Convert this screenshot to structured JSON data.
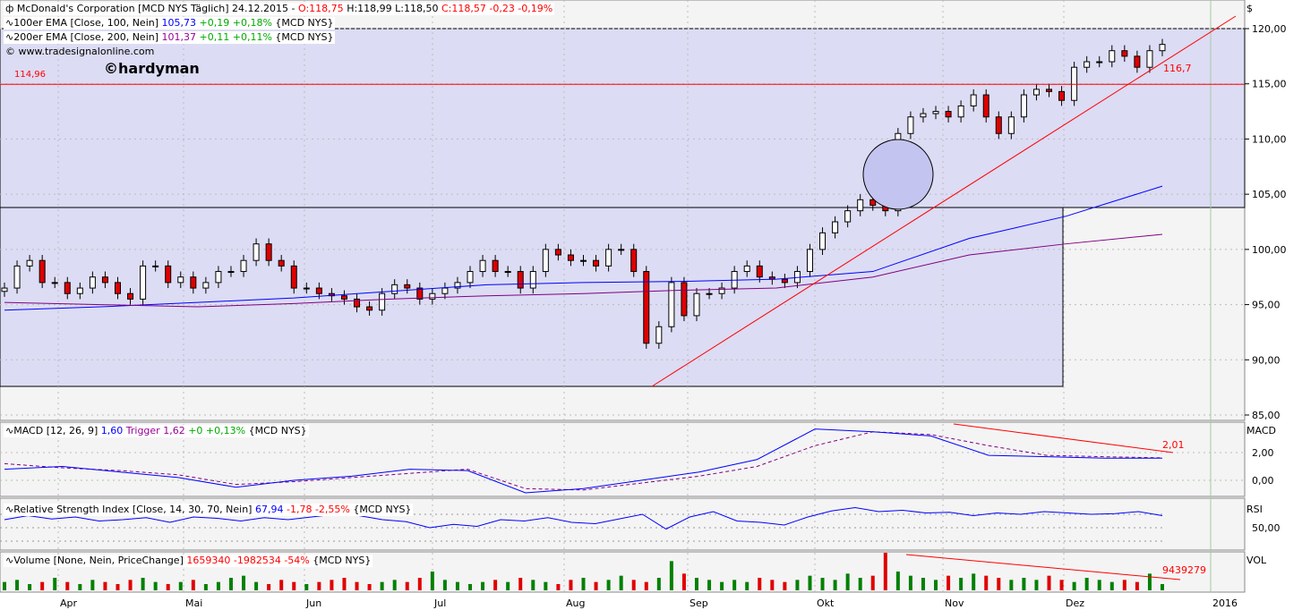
{
  "header": {
    "symbol_icon": "candlestick-icon",
    "title": "McDonald's Corporation [MCD NYS  Täglich] 24.12.2015 -",
    "open": "O:118,75",
    "high": "H:118,99",
    "low": "L:118,50",
    "close": "C:118,57 -0,23 -0,19%"
  },
  "ema100": {
    "label": "100er EMA [Close, 100, Nein]",
    "value": "105,73",
    "change": "+0,19 +0,18%",
    "src": "{MCD NYS}"
  },
  "ema200": {
    "label": "200er EMA [Close, 200, Nein]",
    "value": "101,37",
    "change": "+0,11 +0,11%",
    "src": "{MCD NYS}"
  },
  "copyright": "© www.tradesignalonline.com",
  "watermark": "©hardyman",
  "level_label": "114,96",
  "trend_label": "116,7",
  "macd": {
    "label": "MACD [12, 26, 9]",
    "value": "1,60",
    "trigger": "Trigger 1,62",
    "change": "+0 +0,13%",
    "src": "{MCD NYS}",
    "axis_title": "MACD",
    "trend_label": "2,01"
  },
  "rsi": {
    "label": "Relative Strength Index [Close, 14, 30, 70, Nein]",
    "value": "67,94",
    "change": "-1,78 -2,55%",
    "src": "{MCD NYS}",
    "axis_title": "RSI"
  },
  "volume": {
    "label": "Volume [None, Nein, PriceChange]",
    "value": "1659340",
    "change": "-1982534 -54%",
    "src": "{MCD NYS}",
    "axis_title": "VOL",
    "trend_label": "9439279"
  },
  "currency": "$",
  "chart_data": {
    "type": "candlestick",
    "x_ticks": [
      "Apr",
      "Mai",
      "Jun",
      "Jul",
      "Aug",
      "Sep",
      "Okt",
      "Nov",
      "Dez",
      "2016"
    ],
    "y_ticks": [
      "120,00",
      "115,00",
      "110,00",
      "105,00",
      "100,00",
      "95,00",
      "90,00",
      "85,00"
    ],
    "ylim": [
      85,
      120
    ],
    "close": [
      96.5,
      98.5,
      99,
      97,
      97,
      96,
      96.5,
      97.5,
      97,
      96,
      95.5,
      98.5,
      98.5,
      97,
      97.5,
      96.5,
      97,
      98,
      98,
      99,
      100.5,
      99,
      98.5,
      96.5,
      96.5,
      96,
      95.8,
      95.5,
      94.8,
      94.5,
      96,
      96.8,
      96.5,
      95.5,
      96,
      96.5,
      97,
      98,
      99,
      98,
      98,
      96.5,
      98,
      100,
      99.5,
      99,
      99,
      98.5,
      100,
      100,
      98,
      91.5,
      93,
      97,
      94,
      96,
      96,
      96.5,
      98,
      98.5,
      97.5,
      97.3,
      97,
      98,
      100,
      101.5,
      102.5,
      103.5,
      104.5,
      104,
      103.5,
      110.5,
      112,
      112.3,
      112.5,
      112,
      113,
      114,
      112,
      110.5,
      112,
      114,
      114.5,
      114.3,
      113.5,
      116.5,
      117,
      117,
      118,
      117.5,
      116.5,
      118,
      118.57
    ],
    "ema100": [
      94.5,
      94.8,
      95.2,
      95.6,
      96.2,
      96.8,
      97.0,
      97.1,
      97.3,
      98.0,
      101.0,
      103.0,
      105.73
    ],
    "ema200": [
      95.2,
      95.0,
      94.8,
      95.1,
      95.5,
      95.8,
      96.0,
      96.3,
      96.5,
      97.5,
      99.5,
      100.5,
      101.37
    ],
    "macd_ylim": [
      -1.5,
      4.5
    ],
    "macd_ticks": [
      "2,00",
      "0,00"
    ],
    "macd": [
      0.8,
      1.0,
      0.6,
      0.2,
      -0.5,
      0.0,
      0.3,
      0.8,
      0.7,
      -0.9,
      -0.6,
      0.0,
      0.6,
      1.5,
      3.7,
      3.5,
      3.2,
      1.8,
      1.7,
      1.6,
      1.6
    ],
    "trigger": [
      1.2,
      0.9,
      0.7,
      0.4,
      -0.3,
      -0.1,
      0.2,
      0.5,
      0.8,
      -0.6,
      -0.7,
      -0.2,
      0.3,
      1.0,
      2.5,
      3.5,
      3.3,
      2.5,
      1.8,
      1.7,
      1.62
    ],
    "rsi_ylim": [
      20,
      90
    ],
    "rsi_ticks": [
      "50,00"
    ],
    "rsi": [
      62,
      68,
      63,
      66,
      60,
      62,
      65,
      58,
      66,
      64,
      60,
      65,
      62,
      66,
      70,
      68,
      62,
      59,
      50,
      55,
      52,
      62,
      60,
      65,
      58,
      56,
      63,
      70,
      48,
      66,
      74,
      60,
      58,
      54,
      66,
      75,
      80,
      74,
      76,
      72,
      73,
      68,
      72,
      70,
      74,
      72,
      70,
      71,
      74,
      68
    ],
    "volume": [
      4,
      5,
      3,
      4,
      6,
      4,
      3,
      5,
      4,
      3,
      5,
      6,
      4,
      3,
      4,
      5,
      3,
      4,
      6,
      7,
      4,
      3,
      5,
      4,
      3,
      4,
      5,
      6,
      4,
      3,
      4,
      5,
      4,
      6,
      9,
      5,
      4,
      3,
      4,
      5,
      4,
      6,
      5,
      4,
      3,
      5,
      6,
      4,
      5,
      7,
      5,
      4,
      6,
      14,
      8,
      6,
      5,
      4,
      5,
      4,
      6,
      5,
      4,
      5,
      7,
      6,
      5,
      8,
      6,
      7,
      18,
      9,
      7,
      6,
      5,
      7,
      6,
      8,
      7,
      6,
      5,
      6,
      5,
      7,
      5,
      4,
      6,
      5,
      4,
      5,
      4,
      8,
      3
    ]
  },
  "colors": {
    "panel_bg": "#f4f4f4",
    "zone": "#dcdcf4",
    "ema100": "#0000ff",
    "ema200": "#800080",
    "trend": "#ff0000",
    "up_vol": "#008000",
    "down_vol": "#e00000"
  }
}
